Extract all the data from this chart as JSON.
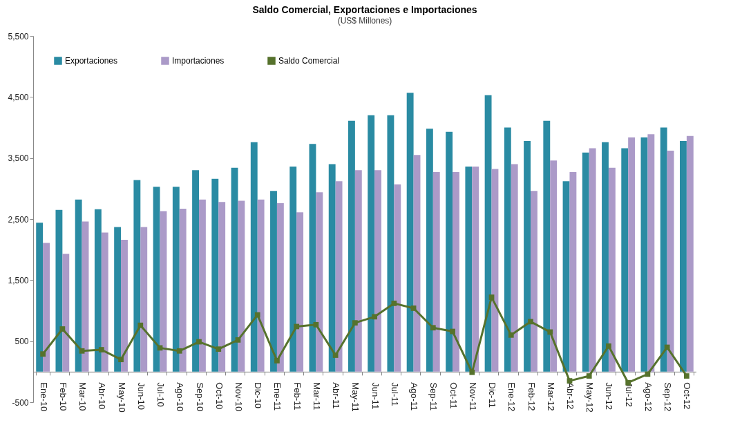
{
  "chart_data": {
    "type": "bar",
    "title": "Saldo Comercial, Exportaciones e Importaciones",
    "subtitle": "(US$ Millones)",
    "categories": [
      "Ene-10",
      "Feb-10",
      "Mar-10",
      "Abr-10",
      "May-10",
      "Jun-10",
      "Jul-10",
      "Ago-10",
      "Sep-10",
      "Oct-10",
      "Nov-10",
      "Dic-10",
      "Ene-11",
      "Feb-11",
      "Mar-11",
      "Abr-11",
      "May-11",
      "Jun-11",
      "Jul-11",
      "Ago-11",
      "Sep-11",
      "Oct-11",
      "Nov-11",
      "Dic-11",
      "Ene-12",
      "Feb-12",
      "Mar-12",
      "Abr-12",
      "May-12",
      "Jun-12",
      "Jul-12",
      "Ago-12",
      "Sep-12",
      "Oct-12"
    ],
    "series": [
      {
        "name": "Exportaciones",
        "color": "#2a8ba3",
        "values": [
          2440,
          2650,
          2820,
          2660,
          2370,
          3140,
          3030,
          3030,
          3300,
          3160,
          3340,
          3760,
          2960,
          3360,
          3730,
          3400,
          4110,
          4200,
          4200,
          4570,
          3980,
          3930,
          3360,
          4530,
          4000,
          3780,
          4110,
          3120,
          3590,
          3760,
          3660,
          3840,
          4000,
          3780
        ]
      },
      {
        "name": "Importaciones",
        "color": "#ab9ac8",
        "values": [
          2110,
          1930,
          2460,
          2280,
          2160,
          2370,
          2630,
          2670,
          2820,
          2780,
          2800,
          2820,
          2760,
          2610,
          2940,
          3120,
          3300,
          3300,
          3070,
          3550,
          3270,
          3270,
          3360,
          3320,
          3400,
          2960,
          3460,
          3270,
          3660,
          3340,
          3840,
          3890,
          3620,
          3860
        ]
      },
      {
        "name": "Saldo Comercial",
        "type": "line",
        "color": "#56722c",
        "values": [
          290,
          700,
          340,
          360,
          200,
          760,
          390,
          340,
          490,
          370,
          520,
          930,
          180,
          740,
          770,
          270,
          800,
          900,
          1120,
          1040,
          720,
          660,
          -10,
          1220,
          600,
          820,
          650,
          -150,
          -70,
          420,
          -180,
          -40,
          400,
          -70
        ]
      }
    ],
    "ylim": [
      -500,
      5500
    ],
    "yticks": [
      {
        "value": -500,
        "label": "-500"
      },
      500,
      {
        "value": 1500,
        "label": "1,500"
      },
      {
        "value": 2500,
        "label": "2,500"
      },
      {
        "value": 3500,
        "label": "3,500"
      },
      {
        "value": 4500,
        "label": "4,500"
      },
      {
        "value": 5500,
        "label": "5,500"
      }
    ],
    "legend": "top left",
    "marker": "square",
    "grid": false
  }
}
